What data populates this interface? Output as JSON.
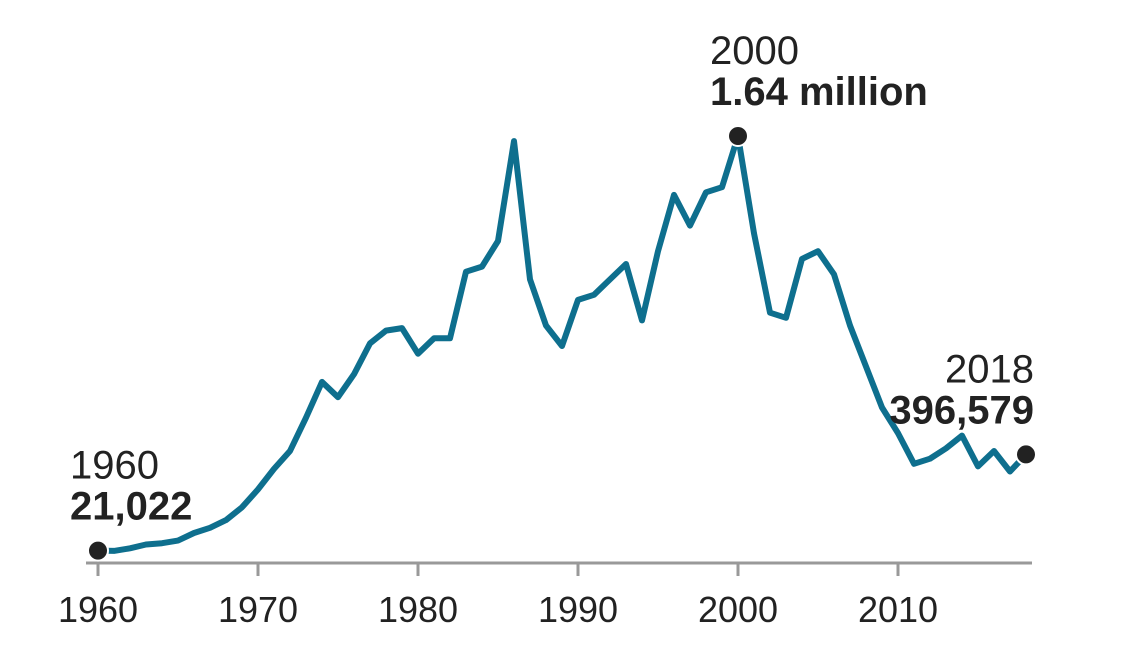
{
  "chart_data": {
    "type": "line",
    "title": "",
    "xlabel": "",
    "ylabel": "",
    "xlim": [
      1960,
      2018
    ],
    "ylim": [
      0,
      1700000
    ],
    "grid": false,
    "x_ticks": [
      1960,
      1970,
      1980,
      1990,
      2000,
      2010
    ],
    "x_tick_labels": [
      "1960",
      "1970",
      "1980",
      "1990",
      "2000",
      "2010"
    ],
    "colors": {
      "line": "#0e6f8e",
      "axis": "#999999",
      "marker": "#222222",
      "text": "#222222"
    },
    "series": [
      {
        "x": [
          1960,
          1961,
          1962,
          1963,
          1964,
          1965,
          1966,
          1967,
          1968,
          1969,
          1970,
          1971,
          1972,
          1973,
          1974,
          1975,
          1976,
          1977,
          1978,
          1979,
          1980,
          1981,
          1982,
          1983,
          1984,
          1985,
          1986,
          1987,
          1988,
          1989,
          1990,
          1991,
          1992,
          1993,
          1994,
          1995,
          1996,
          1997,
          1998,
          1999,
          2000,
          2001,
          2002,
          2003,
          2004,
          2005,
          2006,
          2007,
          2008,
          2009,
          2010,
          2011,
          2012,
          2013,
          2014,
          2015,
          2016,
          2017,
          2018
        ],
        "y": [
          21022,
          20000,
          30000,
          45000,
          50000,
          60000,
          90000,
          110000,
          140000,
          190000,
          260000,
          340000,
          410000,
          540000,
          680000,
          620000,
          710000,
          830000,
          880000,
          890000,
          790000,
          850000,
          850000,
          1110000,
          1130000,
          1230000,
          1620000,
          1080000,
          900000,
          820000,
          1000000,
          1020000,
          1080000,
          1140000,
          920000,
          1190000,
          1410000,
          1290000,
          1420000,
          1440000,
          1640000,
          1260000,
          950000,
          930000,
          1160000,
          1190000,
          1100000,
          900000,
          740000,
          580000,
          480000,
          360000,
          380000,
          420000,
          470000,
          350000,
          410000,
          330000,
          396579
        ]
      }
    ],
    "annotations": [
      {
        "x": 1960,
        "y": 21022,
        "year": "1960",
        "value": "21,022",
        "position": "above-right"
      },
      {
        "x": 2000,
        "y": 1640000,
        "year": "2000",
        "value": "1.64 million",
        "position": "above-right"
      },
      {
        "x": 2018,
        "y": 396579,
        "year": "2018",
        "value": "396,579",
        "position": "above-left"
      }
    ]
  }
}
